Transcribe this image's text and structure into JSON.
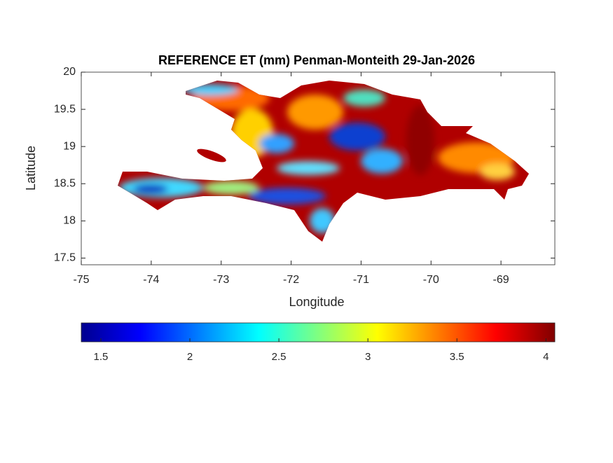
{
  "chart_data": {
    "type": "raster-map",
    "title": "REFERENCE ET (mm) Penman-Monteith 29-Jan-2026",
    "x_label": "Longitude",
    "y_label": "Latitude",
    "xlim": [
      -75,
      -68.23
    ],
    "ylim": [
      17.41,
      20
    ],
    "xticks": [
      -75,
      -74,
      -73,
      -72,
      -71,
      -70,
      -69
    ],
    "yticks": [
      17.5,
      18,
      18.5,
      19,
      19.5,
      20
    ],
    "colormap": "jet",
    "clim": [
      1.39,
      4.05
    ],
    "colorbar_ticks": [
      1.5,
      2,
      2.5,
      3,
      3.5,
      4
    ]
  }
}
